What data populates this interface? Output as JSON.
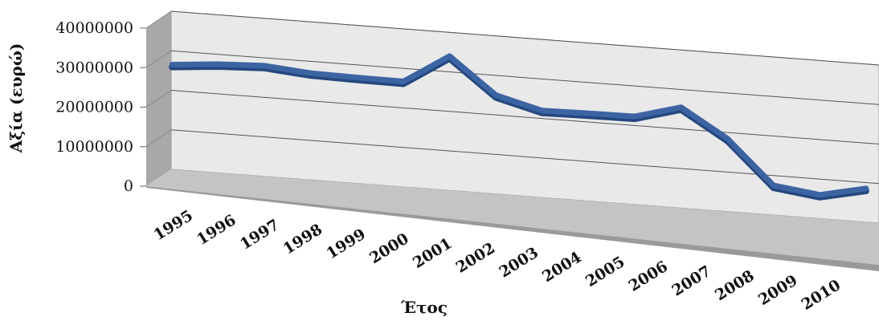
{
  "chart_data": {
    "type": "line",
    "style": "3d-line",
    "title": "",
    "xlabel": "Έτος",
    "ylabel": "Αξία (ευρώ)",
    "ylim": [
      0,
      40000000
    ],
    "yticks": [
      "0",
      "10000000",
      "20000000",
      "30000000",
      "40000000"
    ],
    "grid": true,
    "legend": "none",
    "categories": [
      "1995",
      "1996",
      "1997",
      "1998",
      "1999",
      "2000",
      "2001",
      "2002",
      "2003",
      "2004",
      "2005",
      "2006",
      "2007",
      "2008",
      "2009",
      "2010"
    ],
    "series": [
      {
        "color": "#3c64a3",
        "values": [
          26500000,
          27500000,
          28000000,
          27000000,
          26800000,
          26700000,
          34000000,
          25000000,
          22000000,
          22200000,
          22300000,
          25500000,
          18500000,
          7500000,
          6000000,
          8500000
        ]
      }
    ],
    "colors": {
      "wall": "#e9e9e9",
      "side_wall": "#a8a8a8",
      "floor": "#c4c4c4",
      "floor_edge": "#9a9a9a",
      "gridline": "#555555",
      "line": "#3c64a3",
      "line_shadow": "#24477e"
    }
  }
}
